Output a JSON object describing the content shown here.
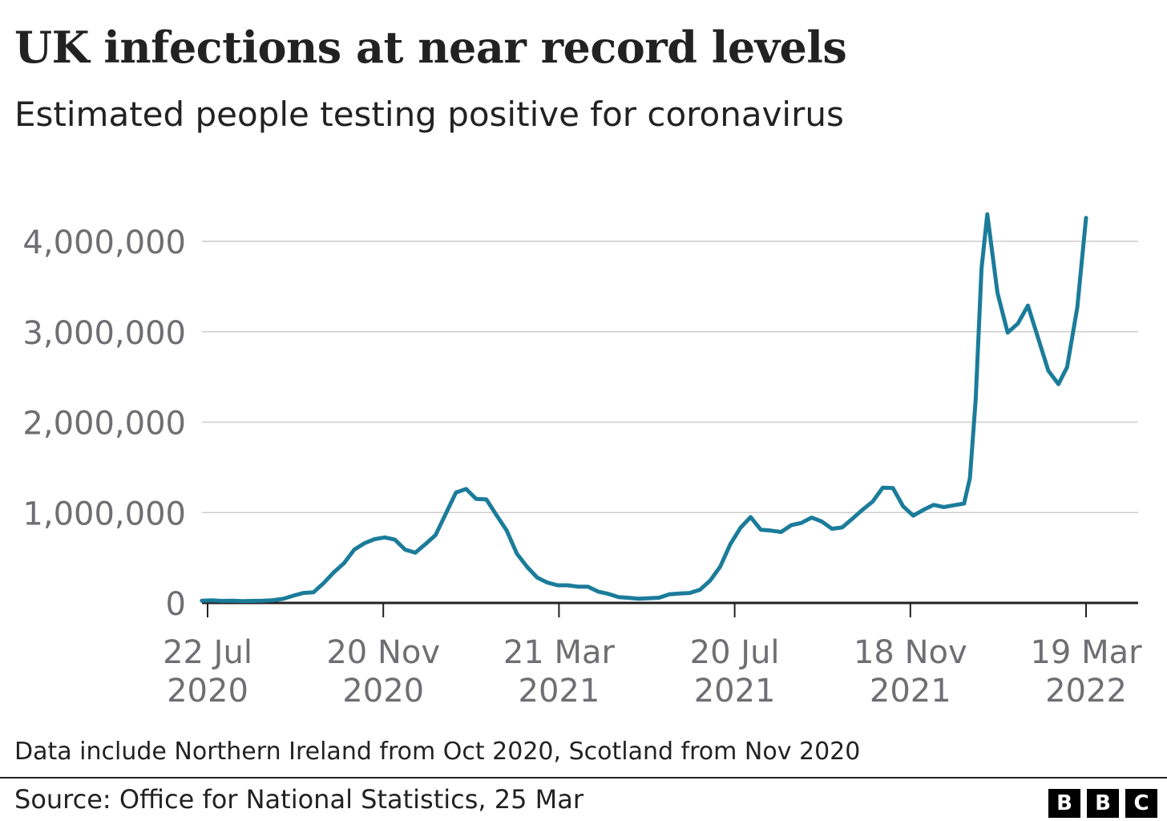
{
  "title": "UK infections at near record levels",
  "subtitle": "Estimated people testing positive for coronavirus",
  "note": "Data include Northern Ireland from Oct 2020, Scotland from Nov 2020",
  "source": "Source: Office for National Statistics, 25 Mar",
  "logo": [
    "B",
    "B",
    "C"
  ],
  "colors": {
    "line": "#1b7c9a",
    "grid": "#cccccc",
    "axis": "#222222",
    "tick_text": "#6e6e73"
  },
  "chart_data": {
    "type": "line",
    "title": "UK infections at near record levels",
    "subtitle": "Estimated people testing positive for coronavirus",
    "xlabel": "",
    "ylabel": "",
    "x_start": "2020-07-22",
    "x_end": "2022-03-19",
    "x_ticks": [
      {
        "date": "2020-07-22",
        "label": [
          "22 Jul",
          "2020"
        ]
      },
      {
        "date": "2020-11-20",
        "label": [
          "20 Nov",
          "2020"
        ]
      },
      {
        "date": "2021-03-21",
        "label": [
          "21 Mar",
          "2021"
        ]
      },
      {
        "date": "2021-07-20",
        "label": [
          "20 Jul",
          "2021"
        ]
      },
      {
        "date": "2021-11-18",
        "label": [
          "18 Nov",
          "2021"
        ]
      },
      {
        "date": "2022-03-19",
        "label": [
          "19 Mar",
          "2022"
        ]
      }
    ],
    "ylim": [
      0,
      4000000
    ],
    "y_ticks": [
      {
        "value": 0,
        "label": "0"
      },
      {
        "value": 1000000,
        "label": "1,000,000"
      },
      {
        "value": 2000000,
        "label": "2,000,000"
      },
      {
        "value": 3000000,
        "label": "3,000,000"
      },
      {
        "value": 4000000,
        "label": "4,000,000"
      }
    ],
    "grid": true,
    "series": [
      {
        "points": [
          [
            "2020-07-18",
            25000
          ],
          [
            "2020-07-25",
            28000
          ],
          [
            "2020-08-01",
            22000
          ],
          [
            "2020-08-08",
            24000
          ],
          [
            "2020-08-15",
            20000
          ],
          [
            "2020-08-22",
            22000
          ],
          [
            "2020-08-29",
            24000
          ],
          [
            "2020-09-05",
            30000
          ],
          [
            "2020-09-12",
            45000
          ],
          [
            "2020-09-19",
            80000
          ],
          [
            "2020-09-26",
            110000
          ],
          [
            "2020-10-03",
            118000
          ],
          [
            "2020-10-10",
            220000
          ],
          [
            "2020-10-17",
            340000
          ],
          [
            "2020-10-24",
            440000
          ],
          [
            "2020-10-31",
            590000
          ],
          [
            "2020-11-07",
            660000
          ],
          [
            "2020-11-14",
            705000
          ],
          [
            "2020-11-21",
            725000
          ],
          [
            "2020-11-28",
            700000
          ],
          [
            "2020-12-05",
            590000
          ],
          [
            "2020-12-12",
            555000
          ],
          [
            "2020-12-19",
            650000
          ],
          [
            "2020-12-26",
            750000
          ],
          [
            "2021-01-02",
            985000
          ],
          [
            "2021-01-09",
            1220000
          ],
          [
            "2021-01-16",
            1260000
          ],
          [
            "2021-01-23",
            1150000
          ],
          [
            "2021-01-30",
            1145000
          ],
          [
            "2021-02-06",
            970000
          ],
          [
            "2021-02-13",
            800000
          ],
          [
            "2021-02-20",
            545000
          ],
          [
            "2021-02-27",
            400000
          ],
          [
            "2021-03-06",
            280000
          ],
          [
            "2021-03-13",
            225000
          ],
          [
            "2021-03-20",
            195000
          ],
          [
            "2021-03-27",
            195000
          ],
          [
            "2021-04-03",
            180000
          ],
          [
            "2021-04-10",
            180000
          ],
          [
            "2021-04-17",
            125000
          ],
          [
            "2021-04-24",
            100000
          ],
          [
            "2021-05-01",
            65000
          ],
          [
            "2021-05-08",
            57000
          ],
          [
            "2021-05-15",
            47000
          ],
          [
            "2021-05-22",
            52000
          ],
          [
            "2021-05-29",
            58000
          ],
          [
            "2021-06-05",
            95000
          ],
          [
            "2021-06-12",
            105000
          ],
          [
            "2021-06-19",
            110000
          ],
          [
            "2021-06-26",
            145000
          ],
          [
            "2021-07-03",
            245000
          ],
          [
            "2021-07-10",
            400000
          ],
          [
            "2021-07-17",
            650000
          ],
          [
            "2021-07-24",
            830000
          ],
          [
            "2021-07-31",
            950000
          ],
          [
            "2021-08-07",
            810000
          ],
          [
            "2021-08-14",
            800000
          ],
          [
            "2021-08-21",
            785000
          ],
          [
            "2021-08-28",
            860000
          ],
          [
            "2021-09-04",
            885000
          ],
          [
            "2021-09-11",
            945000
          ],
          [
            "2021-09-18",
            900000
          ],
          [
            "2021-09-25",
            820000
          ],
          [
            "2021-10-02",
            835000
          ],
          [
            "2021-10-09",
            930000
          ],
          [
            "2021-10-16",
            1030000
          ],
          [
            "2021-10-23",
            1120000
          ],
          [
            "2021-10-30",
            1275000
          ],
          [
            "2021-11-06",
            1270000
          ],
          [
            "2021-11-13",
            1070000
          ],
          [
            "2021-11-20",
            965000
          ],
          [
            "2021-11-27",
            1030000
          ],
          [
            "2021-12-04",
            1085000
          ],
          [
            "2021-12-11",
            1060000
          ],
          [
            "2021-12-18",
            1080000
          ],
          [
            "2021-12-25",
            1100000
          ],
          [
            "2021-12-29",
            1380000
          ],
          [
            "2022-01-02",
            2250000
          ],
          [
            "2022-01-06",
            3700000
          ],
          [
            "2022-01-10",
            4300000
          ],
          [
            "2022-01-17",
            3430000
          ],
          [
            "2022-01-24",
            2990000
          ],
          [
            "2022-01-31",
            3090000
          ],
          [
            "2022-02-07",
            3290000
          ],
          [
            "2022-02-14",
            2930000
          ],
          [
            "2022-02-21",
            2570000
          ],
          [
            "2022-02-28",
            2420000
          ],
          [
            "2022-03-06",
            2610000
          ],
          [
            "2022-03-13",
            3270000
          ],
          [
            "2022-03-19",
            4260000
          ]
        ]
      }
    ]
  }
}
